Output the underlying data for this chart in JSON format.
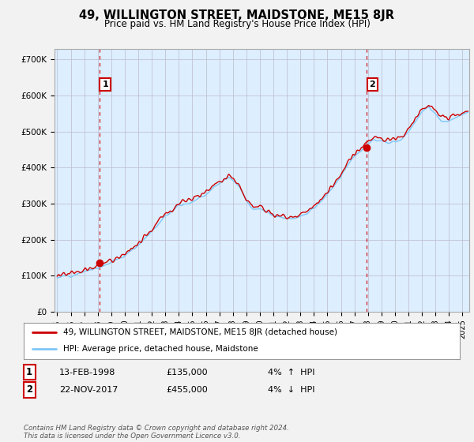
{
  "title": "49, WILLINGTON STREET, MAIDSTONE, ME15 8JR",
  "subtitle": "Price paid vs. HM Land Registry's House Price Index (HPI)",
  "ylabel_ticks": [
    "£0",
    "£100K",
    "£200K",
    "£300K",
    "£400K",
    "£500K",
    "£600K",
    "£700K"
  ],
  "ytick_values": [
    0,
    100000,
    200000,
    300000,
    400000,
    500000,
    600000,
    700000
  ],
  "ylim": [
    0,
    730000
  ],
  "xlim_start": 1994.8,
  "xlim_end": 2025.5,
  "sale1_date": 1998.12,
  "sale1_price": 135000,
  "sale1_label": "1",
  "sale2_date": 2017.9,
  "sale2_price": 455000,
  "sale2_label": "2",
  "hpi_color": "#7ec8f7",
  "price_color": "#cc0000",
  "sale_dot_color": "#cc0000",
  "background_color": "#f2f2f2",
  "plot_bg_color": "#ddeeff",
  "grid_color": "#bbbbcc",
  "legend_label1": "49, WILLINGTON STREET, MAIDSTONE, ME15 8JR (detached house)",
  "legend_label2": "HPI: Average price, detached house, Maidstone",
  "footer": "Contains HM Land Registry data © Crown copyright and database right 2024.\nThis data is licensed under the Open Government Licence v3.0.",
  "xtick_years": [
    1995,
    1996,
    1997,
    1998,
    1999,
    2000,
    2001,
    2002,
    2003,
    2004,
    2005,
    2006,
    2007,
    2008,
    2009,
    2010,
    2011,
    2012,
    2013,
    2014,
    2015,
    2016,
    2017,
    2018,
    2019,
    2020,
    2021,
    2022,
    2023,
    2024,
    2025
  ],
  "hpi_keypoints": [
    [
      1995.0,
      95000
    ],
    [
      1996.0,
      101000
    ],
    [
      1997.0,
      110000
    ],
    [
      1998.0,
      122000
    ],
    [
      1999.0,
      138000
    ],
    [
      2000.0,
      155000
    ],
    [
      2001.0,
      185000
    ],
    [
      2002.0,
      225000
    ],
    [
      2003.0,
      265000
    ],
    [
      2004.0,
      295000
    ],
    [
      2005.0,
      305000
    ],
    [
      2006.0,
      325000
    ],
    [
      2007.0,
      355000
    ],
    [
      2007.7,
      372000
    ],
    [
      2008.5,
      345000
    ],
    [
      2009.0,
      310000
    ],
    [
      2009.5,
      285000
    ],
    [
      2010.0,
      285000
    ],
    [
      2010.5,
      275000
    ],
    [
      2011.0,
      268000
    ],
    [
      2011.5,
      262000
    ],
    [
      2012.0,
      258000
    ],
    [
      2012.5,
      260000
    ],
    [
      2013.0,
      265000
    ],
    [
      2013.5,
      272000
    ],
    [
      2014.0,
      285000
    ],
    [
      2014.5,
      305000
    ],
    [
      2015.0,
      325000
    ],
    [
      2015.5,
      348000
    ],
    [
      2016.0,
      378000
    ],
    [
      2016.5,
      408000
    ],
    [
      2017.0,
      430000
    ],
    [
      2017.5,
      448000
    ],
    [
      2018.0,
      468000
    ],
    [
      2018.5,
      478000
    ],
    [
      2019.0,
      472000
    ],
    [
      2019.5,
      468000
    ],
    [
      2020.0,
      470000
    ],
    [
      2020.5,
      478000
    ],
    [
      2021.0,
      498000
    ],
    [
      2021.5,
      528000
    ],
    [
      2022.0,
      555000
    ],
    [
      2022.5,
      565000
    ],
    [
      2023.0,
      548000
    ],
    [
      2023.5,
      530000
    ],
    [
      2024.0,
      528000
    ],
    [
      2024.5,
      538000
    ],
    [
      2025.0,
      545000
    ],
    [
      2025.4,
      548000
    ]
  ]
}
